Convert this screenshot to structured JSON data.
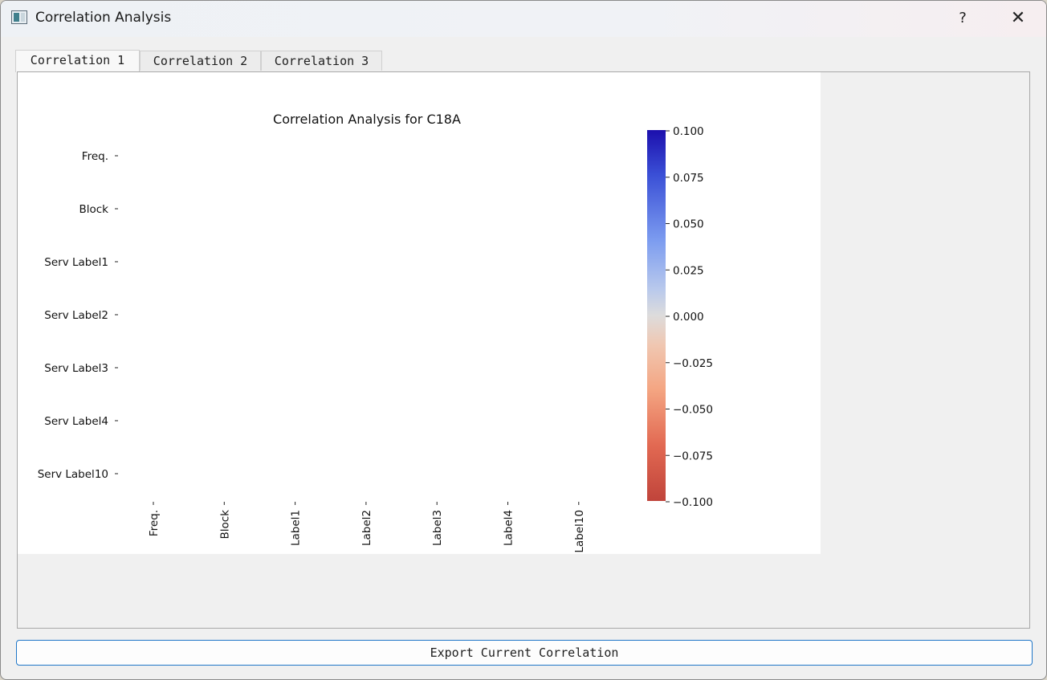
{
  "window": {
    "title": "Correlation Analysis",
    "help_label": "?",
    "close_label": "✕"
  },
  "tabs": [
    {
      "label": "Correlation 1",
      "active": true
    },
    {
      "label": "Correlation 2",
      "active": false
    },
    {
      "label": "Correlation 3",
      "active": false
    }
  ],
  "export_button": {
    "label": "Export Current Correlation"
  },
  "chart_data": {
    "type": "heatmap",
    "title": "Correlation Analysis for C18A",
    "row_labels": [
      "Freq.",
      "Block",
      "Serv Label1",
      "Serv Label2",
      "Serv Label3",
      "Serv Label4",
      "Serv Label10"
    ],
    "col_labels": [
      "Freq.",
      "Block",
      "Label1",
      "Label2",
      "Label3",
      "Label4",
      "Label10"
    ],
    "values": [],
    "colorbar": {
      "colormap": "coolwarm",
      "vmin": -0.1,
      "vmax": 0.1,
      "ticks": [
        "0.100",
        "0.075",
        "0.050",
        "0.025",
        "0.000",
        "−0.025",
        "−0.050",
        "−0.075",
        "−0.100"
      ],
      "top_color": "#1c0fad",
      "mid_color": "#dddcdc",
      "bottom_color": "#c0443b"
    }
  }
}
